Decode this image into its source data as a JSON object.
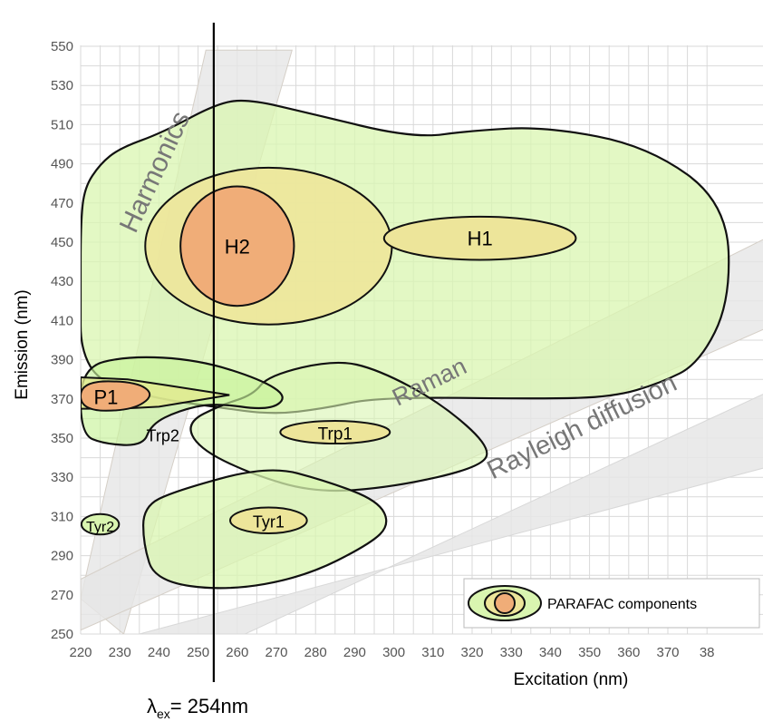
{
  "chart_data": {
    "type": "contour-diagram",
    "xlabel": "Excitation (nm)",
    "ylabel": "Emission (nm)",
    "xlim": [
      220,
      385
    ],
    "ylim": [
      250,
      550
    ],
    "xticks": [
      "220",
      "230",
      "240",
      "250",
      "260",
      "270",
      "280",
      "290",
      "300",
      "310",
      "320",
      "330",
      "340",
      "350",
      "360",
      "370",
      "38"
    ],
    "yticks": [
      "250",
      "270",
      "290",
      "310",
      "330",
      "350",
      "370",
      "390",
      "410",
      "430",
      "450",
      "470",
      "490",
      "510",
      "530",
      "550"
    ],
    "grid": true,
    "excitation_line": {
      "x": 254,
      "label": "λex= 254nm",
      "label_prefix": "λ",
      "label_sub": "ex",
      "label_suffix": "= 254nm"
    },
    "bands": [
      {
        "name": "Harmonics",
        "color": "#e6e6e6"
      },
      {
        "name": "Raman",
        "color": "#e6e6e6"
      },
      {
        "name": "Rayleigh diffusion",
        "color": "#e6e6e6"
      }
    ],
    "components": [
      {
        "name": "H2",
        "ex": 260,
        "em": 448
      },
      {
        "name": "H1",
        "ex": 322,
        "em": 452
      },
      {
        "name": "P1",
        "ex": 226,
        "em": 371
      },
      {
        "name": "Trp2",
        "ex": 241,
        "em": 352
      },
      {
        "name": "Trp1",
        "ex": 285,
        "em": 353
      },
      {
        "name": "Tyr1",
        "ex": 268,
        "em": 308
      },
      {
        "name": "Tyr2",
        "ex": 225,
        "em": 306
      }
    ],
    "legend": {
      "label": "PARAFAC components",
      "position": "bottom-right"
    },
    "colors": {
      "outer": "#d9f5b0",
      "middle": "#ede59a",
      "inner": "#f0ad78"
    }
  }
}
